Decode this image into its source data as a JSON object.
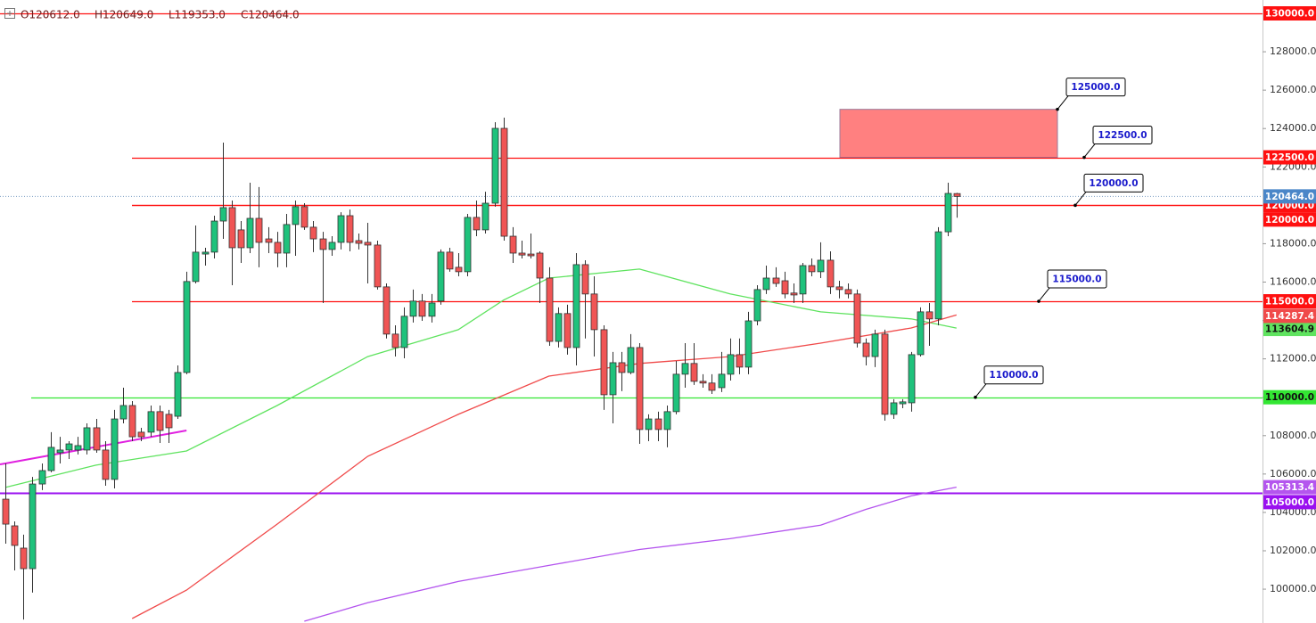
{
  "chart_data": {
    "type": "candlestick",
    "ohlc_header": [
      "O120612.0",
      "H120649.0",
      "L119353.0",
      "C120464.0"
    ],
    "up_color": "#1fc27c",
    "down_color": "#f05555",
    "open": [
      104690,
      103300,
      102140,
      101070,
      105480,
      106180,
      107110,
      107250,
      107250,
      107250,
      108410,
      107250,
      105720,
      108870,
      109570,
      108180,
      108180,
      109250,
      109110,
      109010,
      111290,
      116030,
      117460,
      117560,
      119180,
      119880,
      118720,
      117790,
      119320,
      118250,
      118070,
      117510,
      119000,
      119930,
      118860,
      118250,
      117700,
      118070,
      119460,
      118160,
      118070,
      117930,
      115750,
      113290,
      112590,
      114220,
      115010,
      114220,
      115010,
      117560,
      116770,
      116540,
      119370,
      118720,
      120110,
      124010,
      118390,
      117510,
      117460,
      117510,
      116210,
      112910,
      114360,
      112590,
      116910,
      115380,
      113520,
      110130,
      111800,
      111290,
      112590,
      108320,
      108870,
      108320,
      109250,
      111200,
      111760,
      110830,
      110740,
      110500,
      111200,
      112220,
      111570,
      113980,
      115610,
      116210,
      116070,
      115430,
      115380,
      116860,
      116540,
      117140,
      115750,
      115610,
      115380,
      112820,
      112120,
      113290,
      109110,
      109660,
      109710,
      112220,
      114450,
      114080,
      118620,
      120612
    ],
    "high": [
      106550,
      103530,
      102840,
      105850,
      106550,
      108180,
      107940,
      107710,
      107940,
      108640,
      108870,
      107710,
      109340,
      110500,
      109800,
      108410,
      109570,
      109570,
      109340,
      111660,
      116540,
      118950,
      117790,
      119460,
      123270,
      120250,
      119180,
      121180,
      120950,
      118860,
      118620,
      119550,
      120250,
      120110,
      119180,
      118620,
      118390,
      119640,
      119780,
      118530,
      119090,
      118160,
      115930,
      113750,
      114680,
      115610,
      115380,
      115380,
      117700,
      117790,
      117510,
      119550,
      120250,
      120710,
      124330,
      124570,
      118860,
      118160,
      118530,
      117600,
      116770,
      114680,
      114820,
      117510,
      117140,
      116300,
      113750,
      112360,
      112360,
      113290,
      112820,
      109110,
      109250,
      109570,
      111890,
      112820,
      112820,
      111200,
      111200,
      112360,
      113060,
      113060,
      114450,
      115840,
      116860,
      116770,
      116540,
      115930,
      117000,
      117230,
      118070,
      117600,
      116070,
      115930,
      115610,
      113060,
      113520,
      113520,
      109900,
      109900,
      112360,
      114680,
      114910,
      118860,
      121180,
      120649
    ],
    "low": [
      102370,
      100980,
      98420,
      99820,
      105160,
      106090,
      106550,
      106780,
      107020,
      107020,
      107110,
      105390,
      105250,
      108640,
      107710,
      107710,
      107940,
      107620,
      107620,
      108870,
      111200,
      115930,
      116860,
      117230,
      118250,
      115840,
      117000,
      117510,
      116770,
      117510,
      116770,
      116770,
      117370,
      118720,
      117560,
      114910,
      117370,
      117700,
      117600,
      117700,
      115930,
      115610,
      113060,
      112120,
      112030,
      113890,
      113980,
      113890,
      114820,
      116540,
      116300,
      116300,
      118390,
      118530,
      119930,
      118160,
      117000,
      117230,
      117230,
      114910,
      112680,
      112590,
      112220,
      111660,
      113060,
      112120,
      109340,
      108640,
      110320,
      111200,
      107570,
      107710,
      107710,
      107390,
      109110,
      110500,
      110640,
      110500,
      110170,
      110270,
      110870,
      111200,
      111200,
      113750,
      115380,
      115750,
      115150,
      114910,
      114910,
      116300,
      116210,
      115380,
      115150,
      115150,
      112590,
      111660,
      111570,
      108780,
      108870,
      109430,
      109250,
      112120,
      112680,
      113750,
      118390,
      119353
    ],
    "close": [
      103390,
      102280,
      101070,
      105480,
      106180,
      107390,
      107250,
      107570,
      107480,
      108410,
      107250,
      105720,
      108870,
      109570,
      107940,
      107940,
      109250,
      108270,
      108410,
      111290,
      116030,
      117560,
      117560,
      119180,
      119880,
      117790,
      117790,
      119320,
      118070,
      118070,
      117510,
      119000,
      119930,
      118860,
      118250,
      117700,
      118070,
      119460,
      118070,
      118020,
      117930,
      115750,
      113290,
      112590,
      114220,
      115010,
      114220,
      114910,
      117560,
      116680,
      116540,
      119370,
      118720,
      120110,
      124010,
      118390,
      117510,
      117410,
      117370,
      116210,
      112910,
      114360,
      112590,
      116910,
      115380,
      113520,
      110130,
      111800,
      111290,
      112590,
      108320,
      108870,
      108320,
      109250,
      111200,
      111760,
      110830,
      110740,
      110360,
      111200,
      112220,
      111570,
      113980,
      115610,
      116210,
      115930,
      115380,
      115330,
      116860,
      116540,
      117140,
      115750,
      115610,
      115380,
      112820,
      112120,
      113290,
      109110,
      109710,
      109760,
      112220,
      114450,
      114080,
      118620,
      120620,
      120464
    ],
    "ylim": [
      98238,
      130697
    ],
    "yticks": [
      {
        "value": 100000,
        "label": "100000.0"
      },
      {
        "value": 102000,
        "label": "102000.0"
      },
      {
        "value": 104000,
        "label": "104000.0"
      },
      {
        "value": 106000,
        "label": "106000.0"
      },
      {
        "value": 108000,
        "label": "108000.0"
      },
      {
        "value": 110000,
        "label": "110000.0"
      },
      {
        "value": 112000,
        "label": "112000.0"
      },
      {
        "value": 114000,
        "label": "114000.0"
      },
      {
        "value": 116000,
        "label": "116000.0"
      },
      {
        "value": 118000,
        "label": "118000.0"
      },
      {
        "value": 120000,
        "label": "120000.0"
      },
      {
        "value": 122000,
        "label": "122000.0"
      },
      {
        "value": 124000,
        "label": "124000.0"
      },
      {
        "value": 126000,
        "label": "126000.0"
      },
      {
        "value": 128000,
        "label": "128000.0"
      }
    ],
    "moving_averages": [
      {
        "color": "#5fe35f",
        "x": [
          0,
          10,
          20,
          30,
          40,
          50,
          55,
          60,
          70,
          80,
          90,
          100,
          105
        ],
        "values": [
          105300,
          106460,
          107200,
          109570,
          112120,
          113520,
          115060,
          116210,
          116680,
          115380,
          114450,
          114080,
          113604.9
        ]
      },
      {
        "color": "#f04a4a",
        "x": [
          14,
          20,
          30,
          40,
          50,
          60,
          70,
          80,
          90,
          100,
          105
        ],
        "values": [
          98470,
          99950,
          103390,
          106920,
          109110,
          111100,
          111760,
          112120,
          112820,
          113610,
          114287.4
        ]
      },
      {
        "color": "#b455ee",
        "x": [
          33,
          40,
          50,
          60,
          70,
          80,
          90,
          95,
          100,
          105
        ],
        "values": [
          98330,
          99290,
          100400,
          101240,
          102070,
          102630,
          103330,
          104160,
          104860,
          105313.4
        ]
      }
    ],
    "trendline": {
      "color": "#e020e0",
      "x": [
        0,
        20
      ],
      "values": [
        106550,
        108270
      ]
    },
    "levels": [
      {
        "value": 130000,
        "label": "130000.0",
        "color": "#ff1010"
      },
      {
        "value": 122500,
        "label": "122500.0",
        "color": "#ff1010"
      },
      {
        "value": 120000,
        "label": "120000.0",
        "color": "#ff1010"
      },
      {
        "value": 120000,
        "label": "120000.0",
        "color": "#ff1010"
      },
      {
        "value": 115000,
        "label": "115000.0",
        "color": "#ff1010"
      },
      {
        "value": 110000,
        "label": "110000.0",
        "color": "#33e633"
      },
      {
        "value": 105000,
        "label": "105000.0",
        "color": "#9a10f0"
      }
    ],
    "zone": {
      "range": [
        122500,
        125000
      ],
      "color": "#ff8080"
    },
    "callouts": [
      {
        "value": 125000,
        "label": "125000.0"
      },
      {
        "value": 122500,
        "label": "122500.0"
      },
      {
        "value": 120000,
        "label": "120000.0"
      },
      {
        "value": 115000,
        "label": "115000.0"
      },
      {
        "value": 110000,
        "label": "110000.0"
      }
    ],
    "last_price": {
      "value": 120464,
      "label": "120464.0",
      "color": "#4a86c8"
    }
  }
}
